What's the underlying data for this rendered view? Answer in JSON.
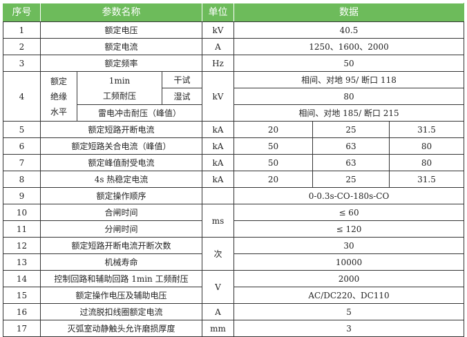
{
  "header": {
    "no": "序号",
    "name": "参数名称",
    "unit": "单位",
    "data": "数据"
  },
  "colors": {
    "header_bg": "#6dbb5b",
    "header_text": "#ffffff"
  },
  "rows": {
    "r1": {
      "no": "1",
      "name": "额定电压",
      "unit": "kV",
      "value": "40.5"
    },
    "r2": {
      "no": "2",
      "name": "额定电流",
      "unit": "A",
      "value": "1250、1600、2000"
    },
    "r3": {
      "no": "3",
      "name": "额定频率",
      "unit": "Hz",
      "value": "50"
    },
    "r4": {
      "no": "4",
      "group": "额定绝缘水平",
      "group_lines": [
        "额定",
        "绝缘",
        "水平"
      ],
      "sub1": "1min",
      "sub1b": "工频耐压",
      "dry": "干试",
      "wet": "湿试",
      "unit": "kV",
      "dry_value": "相间、对地 95/ 断口 118",
      "wet_value": "80",
      "lightning": "雷电冲击耐压（峰值）",
      "lightning_value": "相间、对地 185/ 断口 215"
    },
    "r5": {
      "no": "5",
      "name": "额定短路开断电流",
      "unit": "kA",
      "values": [
        "20",
        "25",
        "31.5"
      ]
    },
    "r6": {
      "no": "6",
      "name": "额定短路关合电流（峰值）",
      "unit": "kA",
      "values": [
        "50",
        "63",
        "80"
      ]
    },
    "r7": {
      "no": "7",
      "name": "额定峰值耐受电流",
      "unit": "kA",
      "values": [
        "50",
        "63",
        "80"
      ]
    },
    "r8": {
      "no": "8",
      "name": "4s 热稳定电流",
      "unit": "kA",
      "values": [
        "20",
        "25",
        "31.5"
      ]
    },
    "r9": {
      "no": "9",
      "name": "额定操作顺序",
      "unit": "",
      "value": "0-0.3s-CO-180s-CO"
    },
    "r10": {
      "no": "10",
      "name": "合闸时间",
      "unit": "ms",
      "value": "≤ 60"
    },
    "r11": {
      "no": "11",
      "name": "分闸时间",
      "value": "≤ 120"
    },
    "r12": {
      "no": "12",
      "name": "额定短路开断电流开断次数",
      "unit": "次",
      "value": "30"
    },
    "r13": {
      "no": "13",
      "name": "机械寿命",
      "value": "10000"
    },
    "r14": {
      "no": "14",
      "name": "控制回路和辅助回路 1min 工频耐压",
      "unit": "V",
      "value": "2000"
    },
    "r15": {
      "no": "15",
      "name": "额定操作电压及辅助电压",
      "value": "AC/DC220、DC110"
    },
    "r16": {
      "no": "16",
      "name": "过流脱扣线圈额定电流",
      "unit": "A",
      "value": "5"
    },
    "r17": {
      "no": "17",
      "name": "灭弧室动静触头允许磨损厚度",
      "unit": "mm",
      "value": "3"
    }
  }
}
